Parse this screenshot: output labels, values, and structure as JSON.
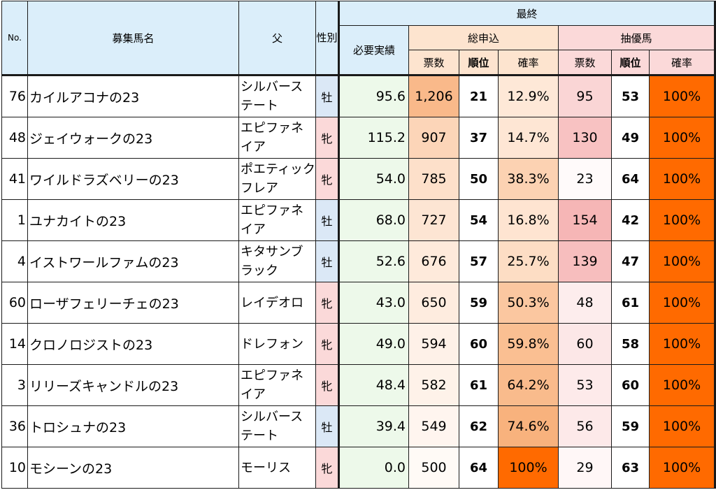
{
  "headers": {
    "no": "No.",
    "name": "募集馬名",
    "sire": "父",
    "sex": "性別",
    "final": "最終",
    "required": "必要実績",
    "total": "総申込",
    "priority": "抽優馬",
    "votes": "票数",
    "rank": "順位",
    "prob": "確率"
  },
  "colors": {
    "header_blue": "#dbeefa",
    "header_orange": "#fde4cf",
    "header_pink": "#fbd9d9",
    "male_blue": "#dbe8f6",
    "female_pink": "#fbd9d9",
    "required_green": "#edf9ea",
    "full_prob_orange": "#ff6a00"
  },
  "rows": [
    {
      "no": "76",
      "name": "カイルアコナの23",
      "sire": "シルバーステート",
      "sex": "牡",
      "required": "95.6",
      "total_votes": "1,206",
      "total_rank": "21",
      "total_prob": "12.9%",
      "priority_votes": "95",
      "priority_rank": "53",
      "priority_prob": "100%"
    },
    {
      "no": "48",
      "name": "ジェイウォークの23",
      "sire": "エピファネイア",
      "sex": "牝",
      "required": "115.2",
      "total_votes": "907",
      "total_rank": "37",
      "total_prob": "14.7%",
      "priority_votes": "130",
      "priority_rank": "49",
      "priority_prob": "100%"
    },
    {
      "no": "41",
      "name": "ワイルドラズベリーの23",
      "sire": "ポエティックフレア",
      "sex": "牝",
      "required": "54.0",
      "total_votes": "785",
      "total_rank": "50",
      "total_prob": "38.3%",
      "priority_votes": "23",
      "priority_rank": "64",
      "priority_prob": "100%"
    },
    {
      "no": "1",
      "name": "ユナカイトの23",
      "sire": "エピファネイア",
      "sex": "牡",
      "required": "68.0",
      "total_votes": "727",
      "total_rank": "54",
      "total_prob": "16.8%",
      "priority_votes": "154",
      "priority_rank": "42",
      "priority_prob": "100%"
    },
    {
      "no": "4",
      "name": "イストワールファムの23",
      "sire": "キタサンブラック",
      "sex": "牡",
      "required": "52.6",
      "total_votes": "676",
      "total_rank": "57",
      "total_prob": "25.7%",
      "priority_votes": "139",
      "priority_rank": "47",
      "priority_prob": "100%"
    },
    {
      "no": "60",
      "name": "ローザフェリーチェの23",
      "sire": "レイデオロ",
      "sex": "牝",
      "required": "43.0",
      "total_votes": "650",
      "total_rank": "59",
      "total_prob": "50.3%",
      "priority_votes": "48",
      "priority_rank": "61",
      "priority_prob": "100%"
    },
    {
      "no": "14",
      "name": "クロノロジストの23",
      "sire": "ドレフォン",
      "sex": "牝",
      "required": "49.0",
      "total_votes": "594",
      "total_rank": "60",
      "total_prob": "59.8%",
      "priority_votes": "60",
      "priority_rank": "58",
      "priority_prob": "100%"
    },
    {
      "no": "3",
      "name": "リリーズキャンドルの23",
      "sire": "エピファネイア",
      "sex": "牝",
      "required": "48.4",
      "total_votes": "582",
      "total_rank": "61",
      "total_prob": "64.2%",
      "priority_votes": "53",
      "priority_rank": "60",
      "priority_prob": "100%"
    },
    {
      "no": "36",
      "name": "トロシュナの23",
      "sire": "シルバーステート",
      "sex": "牡",
      "required": "39.4",
      "total_votes": "549",
      "total_rank": "62",
      "total_prob": "74.6%",
      "priority_votes": "56",
      "priority_rank": "59",
      "priority_prob": "100%"
    },
    {
      "no": "10",
      "name": "モシーンの23",
      "sire": "モーリス",
      "sex": "牝",
      "required": "0.0",
      "total_votes": "500",
      "total_rank": "64",
      "total_prob": "100%",
      "priority_votes": "29",
      "priority_rank": "63",
      "priority_prob": "100%"
    }
  ]
}
